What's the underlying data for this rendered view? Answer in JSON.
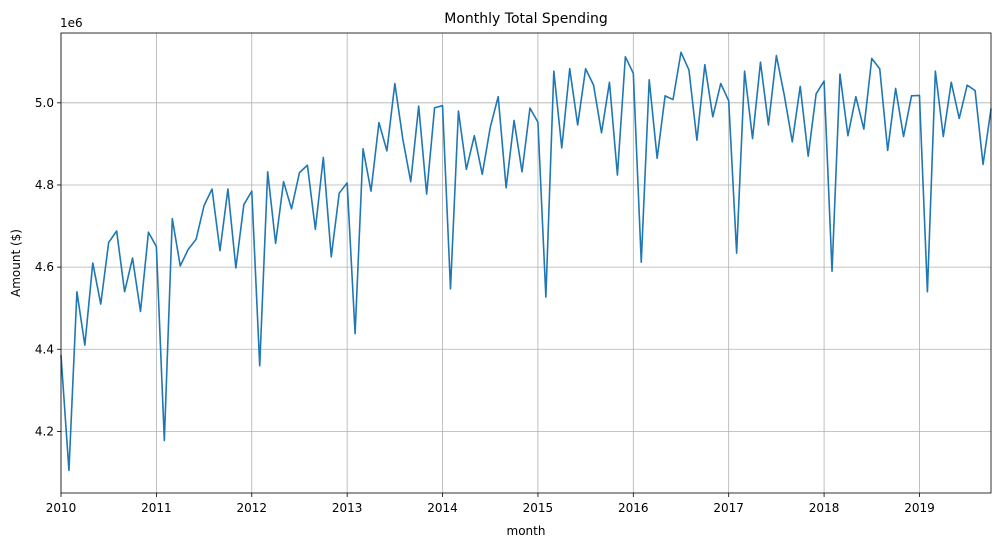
{
  "chart_data": {
    "type": "line",
    "title": "Monthly Total Spending",
    "xlabel": "month",
    "ylabel": "Amount ($)",
    "y_offset_label": "1e6",
    "y_multiplier": 1000000,
    "x_range": [
      "2010-01",
      "2019-10"
    ],
    "ylim": [
      4.05,
      5.17
    ],
    "grid": true,
    "x_ticks": [
      "2010",
      "2011",
      "2012",
      "2013",
      "2014",
      "2015",
      "2016",
      "2017",
      "2018",
      "2019"
    ],
    "y_ticks": [
      "4.2",
      "4.4",
      "4.6",
      "4.8",
      "5.0"
    ],
    "series": [
      {
        "color": "#1f77b4",
        "points": [
          [
            "2010-01",
            4.385
          ],
          [
            "2010-02",
            4.105
          ],
          [
            "2010-03",
            4.54
          ],
          [
            "2010-04",
            4.41
          ],
          [
            "2010-05",
            4.61
          ],
          [
            "2010-06",
            4.51
          ],
          [
            "2010-07",
            4.66
          ],
          [
            "2010-08",
            4.688
          ],
          [
            "2010-09",
            4.54
          ],
          [
            "2010-10",
            4.622
          ],
          [
            "2010-11",
            4.492
          ],
          [
            "2010-12",
            4.685
          ],
          [
            "2011-01",
            4.65
          ],
          [
            "2011-02",
            4.178
          ],
          [
            "2011-03",
            4.718
          ],
          [
            "2011-04",
            4.603
          ],
          [
            "2011-05",
            4.643
          ],
          [
            "2011-06",
            4.668
          ],
          [
            "2011-07",
            4.75
          ],
          [
            "2011-08",
            4.79
          ],
          [
            "2011-09",
            4.64
          ],
          [
            "2011-10",
            4.79
          ],
          [
            "2011-11",
            4.598
          ],
          [
            "2011-12",
            4.752
          ],
          [
            "2012-01",
            4.785
          ],
          [
            "2012-02",
            4.36
          ],
          [
            "2012-03",
            4.832
          ],
          [
            "2012-04",
            4.658
          ],
          [
            "2012-05",
            4.808
          ],
          [
            "2012-06",
            4.742
          ],
          [
            "2012-07",
            4.83
          ],
          [
            "2012-08",
            4.848
          ],
          [
            "2012-09",
            4.692
          ],
          [
            "2012-10",
            4.867
          ],
          [
            "2012-11",
            4.625
          ],
          [
            "2012-12",
            4.78
          ],
          [
            "2013-01",
            4.805
          ],
          [
            "2013-02",
            4.438
          ],
          [
            "2013-03",
            4.888
          ],
          [
            "2013-04",
            4.785
          ],
          [
            "2013-05",
            4.952
          ],
          [
            "2013-06",
            4.883
          ],
          [
            "2013-07",
            5.047
          ],
          [
            "2013-08",
            4.912
          ],
          [
            "2013-09",
            4.808
          ],
          [
            "2013-10",
            4.992
          ],
          [
            "2013-11",
            4.778
          ],
          [
            "2013-12",
            4.988
          ],
          [
            "2014-01",
            4.993
          ],
          [
            "2014-02",
            4.547
          ],
          [
            "2014-03",
            4.98
          ],
          [
            "2014-04",
            4.838
          ],
          [
            "2014-05",
            4.92
          ],
          [
            "2014-06",
            4.826
          ],
          [
            "2014-07",
            4.94
          ],
          [
            "2014-08",
            5.015
          ],
          [
            "2014-09",
            4.793
          ],
          [
            "2014-10",
            4.957
          ],
          [
            "2014-11",
            4.832
          ],
          [
            "2014-12",
            4.987
          ],
          [
            "2015-01",
            4.953
          ],
          [
            "2015-02",
            4.527
          ],
          [
            "2015-03",
            5.077
          ],
          [
            "2015-04",
            4.89
          ],
          [
            "2015-05",
            5.083
          ],
          [
            "2015-06",
            4.946
          ],
          [
            "2015-07",
            5.083
          ],
          [
            "2015-08",
            5.043
          ],
          [
            "2015-09",
            4.927
          ],
          [
            "2015-10",
            5.05
          ],
          [
            "2015-11",
            4.824
          ],
          [
            "2015-12",
            5.112
          ],
          [
            "2016-01",
            5.072
          ],
          [
            "2016-02",
            4.612
          ],
          [
            "2016-03",
            5.056
          ],
          [
            "2016-04",
            4.865
          ],
          [
            "2016-05",
            5.017
          ],
          [
            "2016-06",
            5.008
          ],
          [
            "2016-07",
            5.123
          ],
          [
            "2016-08",
            5.08
          ],
          [
            "2016-09",
            4.909
          ],
          [
            "2016-10",
            5.093
          ],
          [
            "2016-11",
            4.966
          ],
          [
            "2016-12",
            5.047
          ],
          [
            "2017-01",
            5.005
          ],
          [
            "2017-02",
            4.634
          ],
          [
            "2017-03",
            5.077
          ],
          [
            "2017-04",
            4.913
          ],
          [
            "2017-05",
            5.099
          ],
          [
            "2017-06",
            4.946
          ],
          [
            "2017-07",
            5.115
          ],
          [
            "2017-08",
            5.018
          ],
          [
            "2017-09",
            4.905
          ],
          [
            "2017-10",
            5.04
          ],
          [
            "2017-11",
            4.87
          ],
          [
            "2017-12",
            5.022
          ],
          [
            "2018-01",
            5.053
          ],
          [
            "2018-02",
            4.59
          ],
          [
            "2018-03",
            5.07
          ],
          [
            "2018-04",
            4.92
          ],
          [
            "2018-05",
            5.015
          ],
          [
            "2018-06",
            4.936
          ],
          [
            "2018-07",
            5.108
          ],
          [
            "2018-08",
            5.083
          ],
          [
            "2018-09",
            4.884
          ],
          [
            "2018-10",
            5.035
          ],
          [
            "2018-11",
            4.918
          ],
          [
            "2018-12",
            5.017
          ],
          [
            "2019-01",
            5.018
          ],
          [
            "2019-02",
            4.54
          ],
          [
            "2019-03",
            5.077
          ],
          [
            "2019-04",
            4.918
          ],
          [
            "2019-05",
            5.05
          ],
          [
            "2019-06",
            4.962
          ],
          [
            "2019-07",
            5.043
          ],
          [
            "2019-08",
            5.03
          ],
          [
            "2019-09",
            4.85
          ],
          [
            "2019-10",
            4.985
          ]
        ]
      }
    ]
  }
}
